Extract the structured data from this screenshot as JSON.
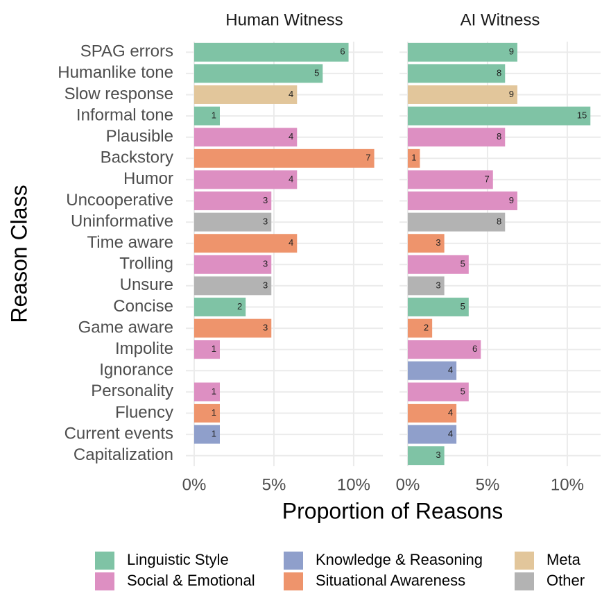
{
  "chart_data": {
    "type": "bar",
    "orientation": "horizontal",
    "xlabel": "Proportion of Reasons",
    "ylabel": "Reason Class",
    "categories": [
      "SPAG errors",
      "Humanlike tone",
      "Slow response",
      "Informal tone",
      "Plausible",
      "Backstory",
      "Humor",
      "Uncooperative",
      "Uninformative",
      "Time aware",
      "Trolling",
      "Unsure",
      "Concise",
      "Game aware",
      "Impolite",
      "Ignorance",
      "Personality",
      "Fluency",
      "Current events",
      "Capitalization"
    ],
    "category_group": [
      0,
      0,
      4,
      0,
      1,
      3,
      1,
      1,
      5,
      3,
      1,
      5,
      0,
      3,
      1,
      2,
      1,
      3,
      2,
      0
    ],
    "groups": [
      {
        "name": "Linguistic Style",
        "color": "#7fc3a5"
      },
      {
        "name": "Social & Emotional",
        "color": "#dd8fc2"
      },
      {
        "name": "Knowledge & Reasoning",
        "color": "#8f9fcb"
      },
      {
        "name": "Situational Awareness",
        "color": "#ee946c"
      },
      {
        "name": "Meta",
        "color": "#e2c69b"
      },
      {
        "name": "Other",
        "color": "#b3b3b3"
      }
    ],
    "grid": true,
    "facets": [
      {
        "title": "Human Witness",
        "values": [
          9.68,
          8.06,
          6.45,
          1.61,
          6.45,
          11.29,
          6.45,
          4.84,
          4.84,
          6.45,
          4.84,
          4.84,
          3.23,
          4.84,
          1.61,
          null,
          1.61,
          1.61,
          1.61,
          null
        ],
        "counts": [
          6,
          5,
          4,
          1,
          4,
          7,
          4,
          3,
          3,
          4,
          3,
          3,
          2,
          3,
          1,
          null,
          1,
          1,
          1,
          null
        ],
        "xlim": [
          -0.52,
          11.83
        ],
        "xticks": [
          {
            "value": 0,
            "label": "0%"
          },
          {
            "value": 5,
            "label": "5%"
          },
          {
            "value": 10,
            "label": "10%"
          }
        ]
      },
      {
        "title": "AI Witness",
        "values": [
          6.87,
          6.1,
          6.87,
          11.45,
          6.1,
          0.76,
          5.34,
          6.87,
          6.1,
          2.29,
          3.82,
          2.29,
          3.82,
          1.53,
          4.58,
          3.05,
          3.82,
          3.05,
          3.05,
          2.29
        ],
        "counts": [
          9,
          8,
          9,
          15,
          8,
          1,
          7,
          9,
          8,
          3,
          5,
          3,
          5,
          2,
          6,
          4,
          5,
          4,
          4,
          3
        ],
        "xlim": [
          -0.52,
          12.09
        ],
        "xticks": [
          {
            "value": 0,
            "label": "0%"
          },
          {
            "value": 5,
            "label": "5%"
          },
          {
            "value": 10,
            "label": "10%"
          }
        ]
      }
    ]
  }
}
